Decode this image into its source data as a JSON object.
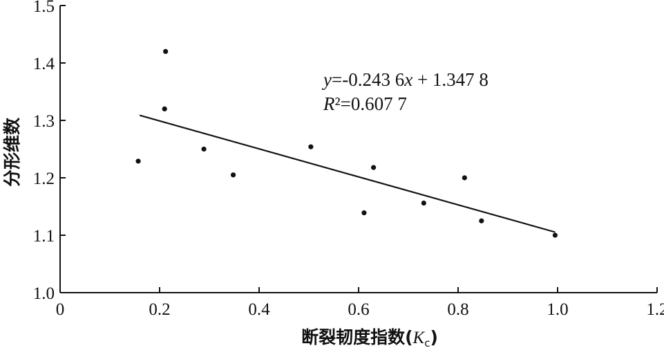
{
  "chart_data": {
    "type": "scatter",
    "xlabel": "断裂韧度指数(Kc)",
    "xlabel_main": "断裂韧度指数(",
    "xlabel_var": "K",
    "xlabel_sub": "c",
    "xlabel_close": ")",
    "ylabel": "分形维数",
    "xlim": [
      0,
      1.2
    ],
    "ylim": [
      1.0,
      1.5
    ],
    "x_ticks": [
      "0",
      "0.2",
      "0.4",
      "0.6",
      "0.8",
      "1.0",
      "1.2"
    ],
    "y_ticks": [
      "1.0",
      "1.1",
      "1.2",
      "1.3",
      "1.4",
      "1.5"
    ],
    "grid": false,
    "legend": "none",
    "points": [
      {
        "x": 0.157,
        "y": 1.229
      },
      {
        "x": 0.212,
        "y": 1.42
      },
      {
        "x": 0.21,
        "y": 1.32
      },
      {
        "x": 0.289,
        "y": 1.25
      },
      {
        "x": 0.348,
        "y": 1.205
      },
      {
        "x": 0.504,
        "y": 1.254
      },
      {
        "x": 0.611,
        "y": 1.139
      },
      {
        "x": 0.63,
        "y": 1.218
      },
      {
        "x": 0.731,
        "y": 1.156
      },
      {
        "x": 0.813,
        "y": 1.2
      },
      {
        "x": 0.847,
        "y": 1.125
      },
      {
        "x": 0.995,
        "y": 1.1
      }
    ],
    "fit": {
      "slope": -0.2436,
      "intercept": 1.3478,
      "x_range": [
        0.16,
        0.995
      ],
      "equation": {
        "y_var": "y",
        "middle": "=-0.243 6",
        "x_var": "x",
        "tail": " + 1.347 8"
      },
      "r2": {
        "var": "R",
        "text": "²=0.607 7"
      }
    }
  }
}
